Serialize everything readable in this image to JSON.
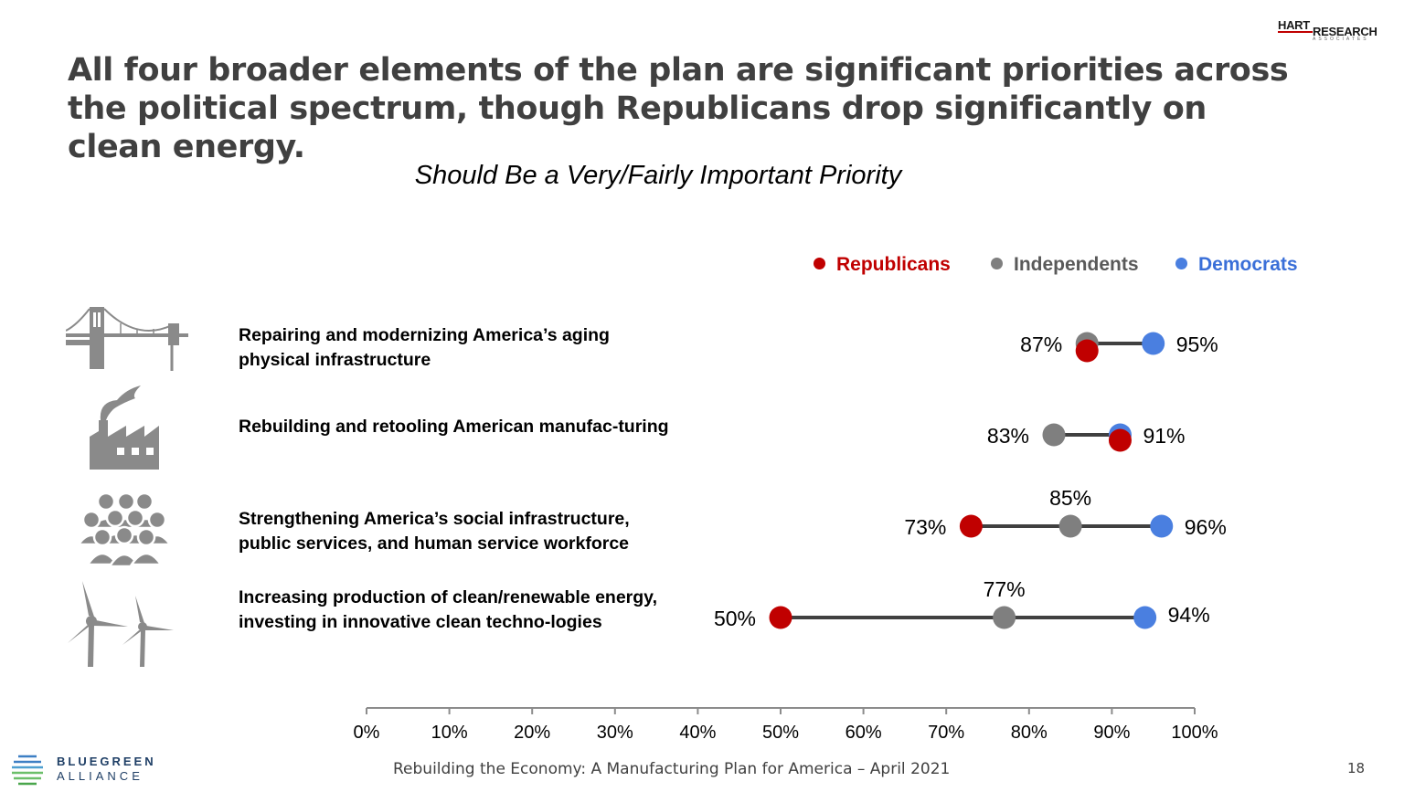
{
  "header": {
    "title": "All four broader elements of the plan are significant priorities across the political spectrum, though Republicans drop significantly on clean energy.",
    "subtitle": "Should Be a Very/Fairly Important Priority"
  },
  "branding": {
    "top_right_line1": "HART",
    "top_right_line2": "RESEARCH",
    "top_right_line3": "ASSOCIATES",
    "bottom_left_line1": "BLUEGREEN",
    "bottom_left_line2": "ALLIANCE"
  },
  "legend": [
    {
      "label": "Republicans",
      "color": "#c00000"
    },
    {
      "label": "Independents",
      "color": "#7f7f7f"
    },
    {
      "label": "Democrats",
      "color": "#4a7fe0"
    }
  ],
  "rows": [
    {
      "label": "Repairing and modernizing America’s aging physical infrastructure",
      "icon": "bridge-icon"
    },
    {
      "label": "Rebuilding and retooling American manufac-turing",
      "icon": "factory-icon"
    },
    {
      "label": "Strengthening America’s social infrastructure, public services, and human service workforce",
      "icon": "people-icon"
    },
    {
      "label": "Increasing production of clean/renewable energy, investing in innovative clean techno-logies",
      "icon": "wind-turbine-icon"
    }
  ],
  "chart_data": {
    "type": "scatter",
    "subtype": "dumbbell",
    "title": "Should Be a Very/Fairly Important Priority",
    "categories": [
      "Repairing and modernizing America’s aging physical infrastructure",
      "Rebuilding and retooling American manufac-turing",
      "Strengthening America’s social infrastructure, public services, and human service workforce",
      "Increasing production of clean/renewable energy, investing in innovative clean techno-logies"
    ],
    "series": [
      {
        "name": "Republicans",
        "color": "#c00000",
        "values": [
          87,
          91,
          73,
          50
        ]
      },
      {
        "name": "Independents",
        "color": "#7f7f7f",
        "values": [
          87,
          83,
          85,
          77
        ]
      },
      {
        "name": "Democrats",
        "color": "#4a7fe0",
        "values": [
          95,
          91,
          96,
          94
        ]
      }
    ],
    "data_labels": [
      [
        "87%",
        "95%"
      ],
      [
        "83%",
        "91%"
      ],
      [
        "73%",
        "85%",
        "96%"
      ],
      [
        "50%",
        "77%",
        "94%"
      ]
    ],
    "xlim": [
      0,
      100
    ],
    "xticks": [
      "0%",
      "10%",
      "20%",
      "30%",
      "40%",
      "50%",
      "60%",
      "70%",
      "80%",
      "90%",
      "100%"
    ],
    "xlabel": "",
    "ylabel": "",
    "grid": false,
    "legend_position": "top-right"
  },
  "footer": {
    "text": "Rebuilding the Economy: A Manufacturing Plan for America – April 2021",
    "page": "18"
  }
}
